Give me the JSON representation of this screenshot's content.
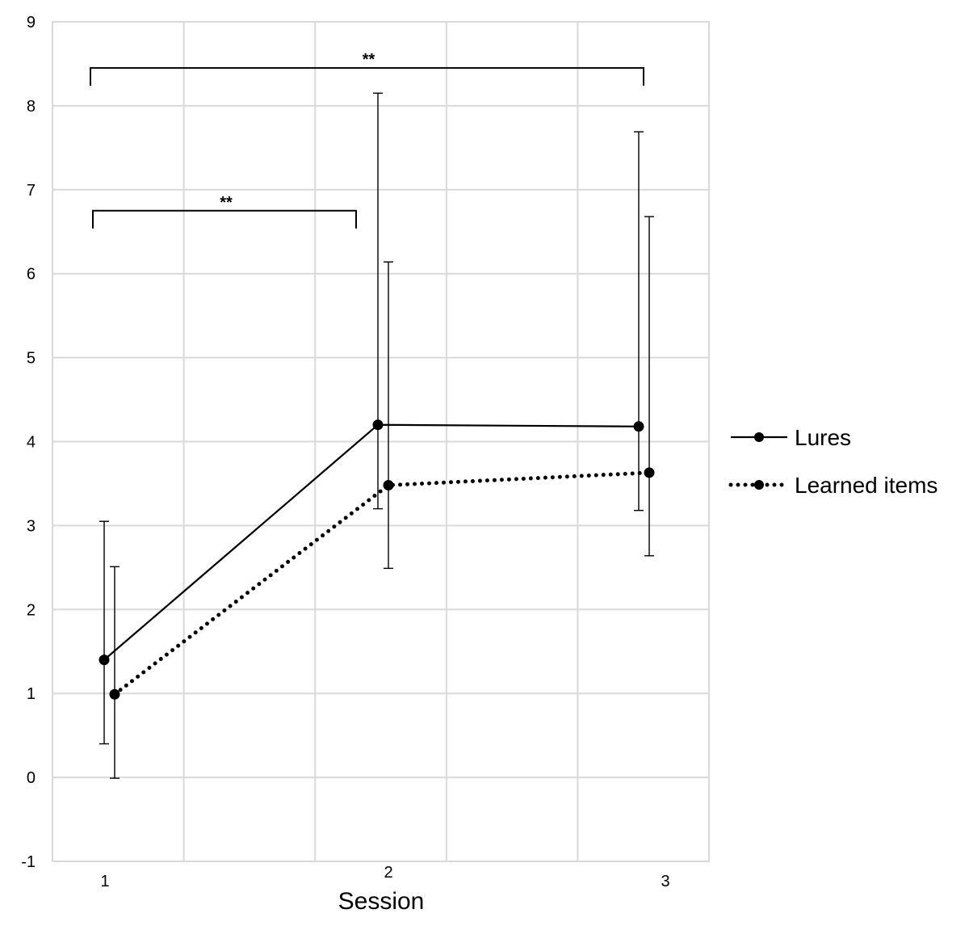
{
  "chart_data": {
    "type": "line",
    "title": "",
    "xlabel": "Session",
    "ylabel": "",
    "categories": [
      "1",
      "2",
      "3"
    ],
    "ylim": [
      -1,
      9
    ],
    "yticks": [
      "-1",
      "0",
      "1",
      "2",
      "3",
      "4",
      "5",
      "6",
      "7",
      "8",
      "9"
    ],
    "grid": true,
    "legend_position": "right",
    "series": [
      {
        "name": "Lures",
        "style": "solid",
        "values": [
          1.4,
          4.2,
          4.18
        ],
        "error_low": [
          0.4,
          3.2,
          3.18
        ],
        "error_high": [
          3.05,
          8.15,
          7.69
        ]
      },
      {
        "name": "Learned items",
        "style": "dotted",
        "values": [
          0.99,
          3.48,
          3.63
        ],
        "error_low": [
          -0.01,
          2.49,
          2.64
        ],
        "error_high": [
          2.51,
          6.14,
          6.68
        ]
      }
    ],
    "annotations": [
      {
        "text": "**",
        "from": "1",
        "to": "3",
        "level": 8.45
      },
      {
        "text": "**",
        "from": "1",
        "to": "2",
        "level": 6.75
      }
    ]
  }
}
